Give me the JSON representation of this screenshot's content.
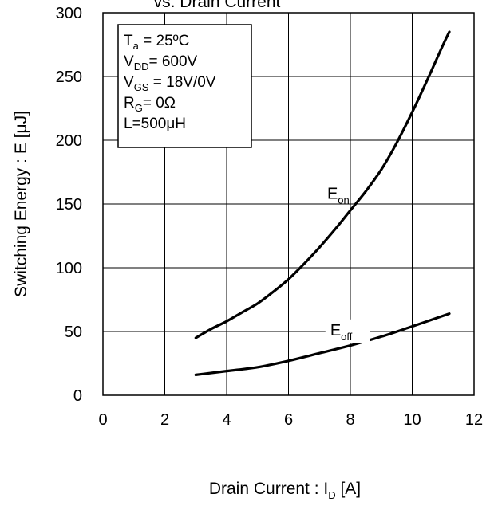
{
  "chart_data": {
    "type": "line",
    "title": "vs. Drain  Current",
    "xlabel": {
      "main": "Drain Current : I",
      "sub": "D",
      "unit": " [A]"
    },
    "ylabel": "Switching Energy : E [μJ]",
    "xlim": [
      0,
      12
    ],
    "ylim": [
      0,
      300
    ],
    "xticks": [
      0,
      2,
      4,
      6,
      8,
      10,
      12
    ],
    "yticks": [
      0,
      50,
      100,
      150,
      200,
      250,
      300
    ],
    "grid": true,
    "conditions": [
      {
        "main": "T",
        "sub": "a",
        "rest": " = 25ºC"
      },
      {
        "main": "V",
        "sub": "DD",
        "rest": "= 600V"
      },
      {
        "main": "V",
        "sub": "GS",
        "rest": " = 18V/0V"
      },
      {
        "main": "R",
        "sub": "G",
        "rest": "= 0Ω"
      },
      {
        "main": "L=500μH",
        "sub": "",
        "rest": ""
      }
    ],
    "series": [
      {
        "name": "E_on",
        "label": {
          "main": "E",
          "sub": "on"
        },
        "x": [
          3.0,
          3.5,
          4.0,
          4.5,
          5.0,
          5.5,
          6.0,
          6.5,
          7.0,
          7.5,
          8.0,
          8.5,
          9.0,
          9.5,
          10.0,
          10.5,
          11.0,
          11.2
        ],
        "y": [
          45,
          52,
          58,
          65,
          72,
          81,
          91,
          103,
          116,
          130,
          145,
          160,
          177,
          198,
          222,
          248,
          275,
          285
        ]
      },
      {
        "name": "E_off",
        "label": {
          "main": "E",
          "sub": "off"
        },
        "x": [
          3.0,
          4.0,
          5.0,
          6.0,
          7.0,
          8.0,
          9.0,
          10.0,
          11.2
        ],
        "y": [
          16,
          19,
          22,
          27,
          33,
          39,
          46,
          54,
          64
        ]
      }
    ]
  }
}
